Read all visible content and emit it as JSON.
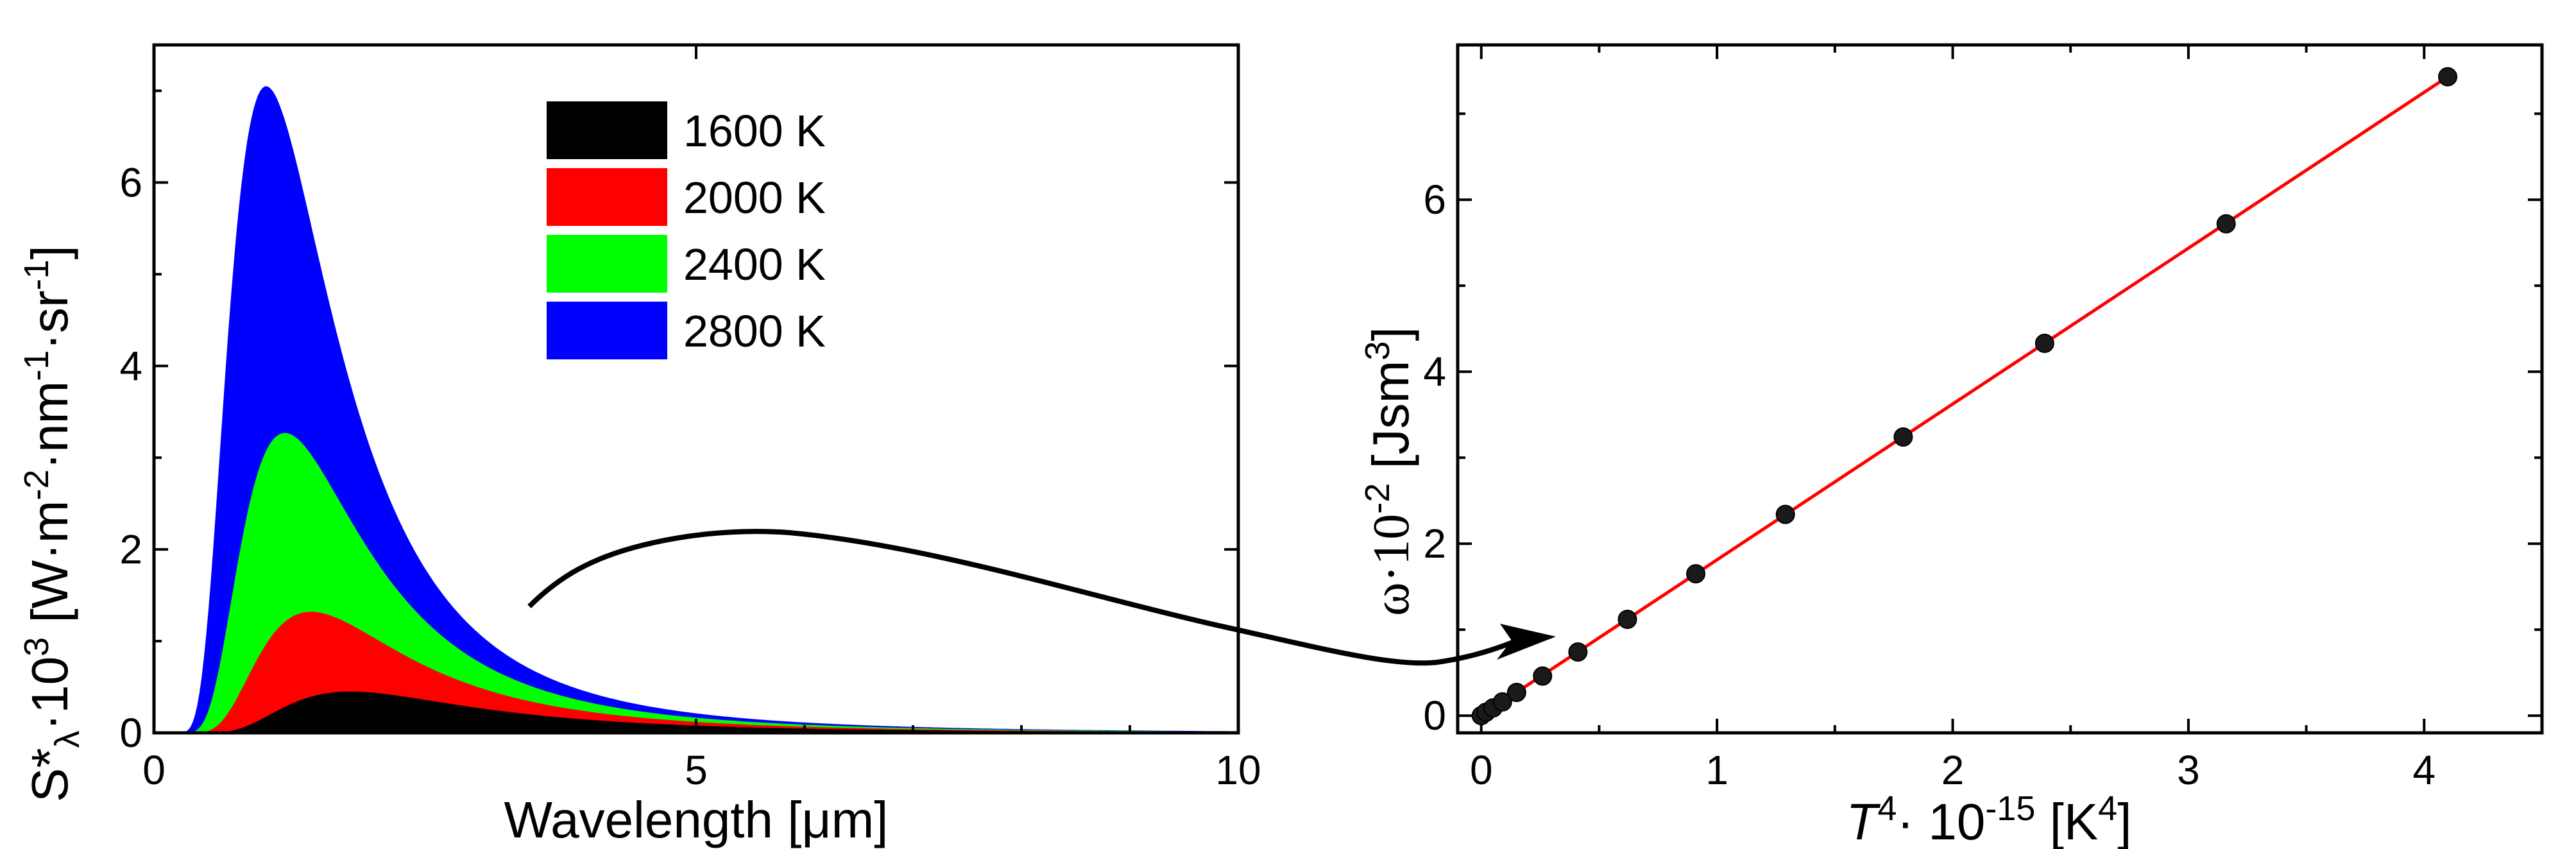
{
  "chart_data": [
    {
      "type": "area",
      "xlabel_text": "Wavelength [",
      "xlabel_unit": "μm",
      "xlabel_close": "]",
      "ylabel_pre": "S*",
      "ylabel_sub": "λ",
      "ylabel_mid": "·10",
      "ylabel_exp1": "3",
      "ylabel_b": " [W·m",
      "ylabel_exp2": "-2",
      "ylabel_c": "·nm",
      "ylabel_exp3": "-1",
      "ylabel_d": "·sr",
      "ylabel_exp4": "-1",
      "ylabel_e": "]",
      "xlim": [
        0,
        10
      ],
      "ylim": [
        0,
        7.5
      ],
      "xticks": [
        0,
        5,
        10
      ],
      "yticks": [
        0,
        2,
        4,
        6
      ],
      "legend_position": "top-center",
      "series": [
        {
          "name": "2800 K",
          "color": "#0000ff",
          "temperature": 2800
        },
        {
          "name": "2400 K",
          "color": "#00ff00",
          "temperature": 2400
        },
        {
          "name": "2000 K",
          "color": "#ff0000",
          "temperature": 2000
        },
        {
          "name": "1600 K",
          "color": "#000000",
          "temperature": 1600
        }
      ],
      "peaks": [
        {
          "name": "2800 K",
          "x": 1.03,
          "y": 7.05
        },
        {
          "name": "2400 K",
          "x": 1.2,
          "y": 3.27
        },
        {
          "name": "2000 K",
          "x": 1.45,
          "y": 1.32
        },
        {
          "name": "1600 K",
          "x": 1.8,
          "y": 0.45
        }
      ]
    },
    {
      "type": "scatter",
      "xlabel_pre": "T",
      "xlabel_exp1": "4",
      "xlabel_mid": "· 10",
      "xlabel_exp2": "-15",
      "xlabel_post": " [K",
      "xlabel_exp3": "4",
      "xlabel_close": "]",
      "ylabel_pre": "ω·10",
      "ylabel_exp1": "-2",
      "ylabel_post": " [Jsm",
      "ylabel_exp2": "3",
      "ylabel_close": "]",
      "xlim": [
        -0.1,
        4.5
      ],
      "ylim": [
        -0.2,
        7.8
      ],
      "xticks": [
        0,
        1,
        2,
        3,
        4
      ],
      "yticks": [
        0,
        2,
        4,
        6
      ],
      "fit_line": {
        "color": "#ff0000",
        "x": [
          0,
          4.1
        ],
        "y": [
          0,
          7.43
        ]
      },
      "x": [
        0.0,
        0.02,
        0.05,
        0.09,
        0.15,
        0.26,
        0.41,
        0.62,
        0.91,
        1.29,
        1.79,
        2.39,
        3.16,
        4.1
      ],
      "y": [
        0.0,
        0.04,
        0.09,
        0.16,
        0.27,
        0.46,
        0.74,
        1.12,
        1.65,
        2.34,
        3.24,
        4.33,
        5.72,
        7.43
      ]
    }
  ]
}
